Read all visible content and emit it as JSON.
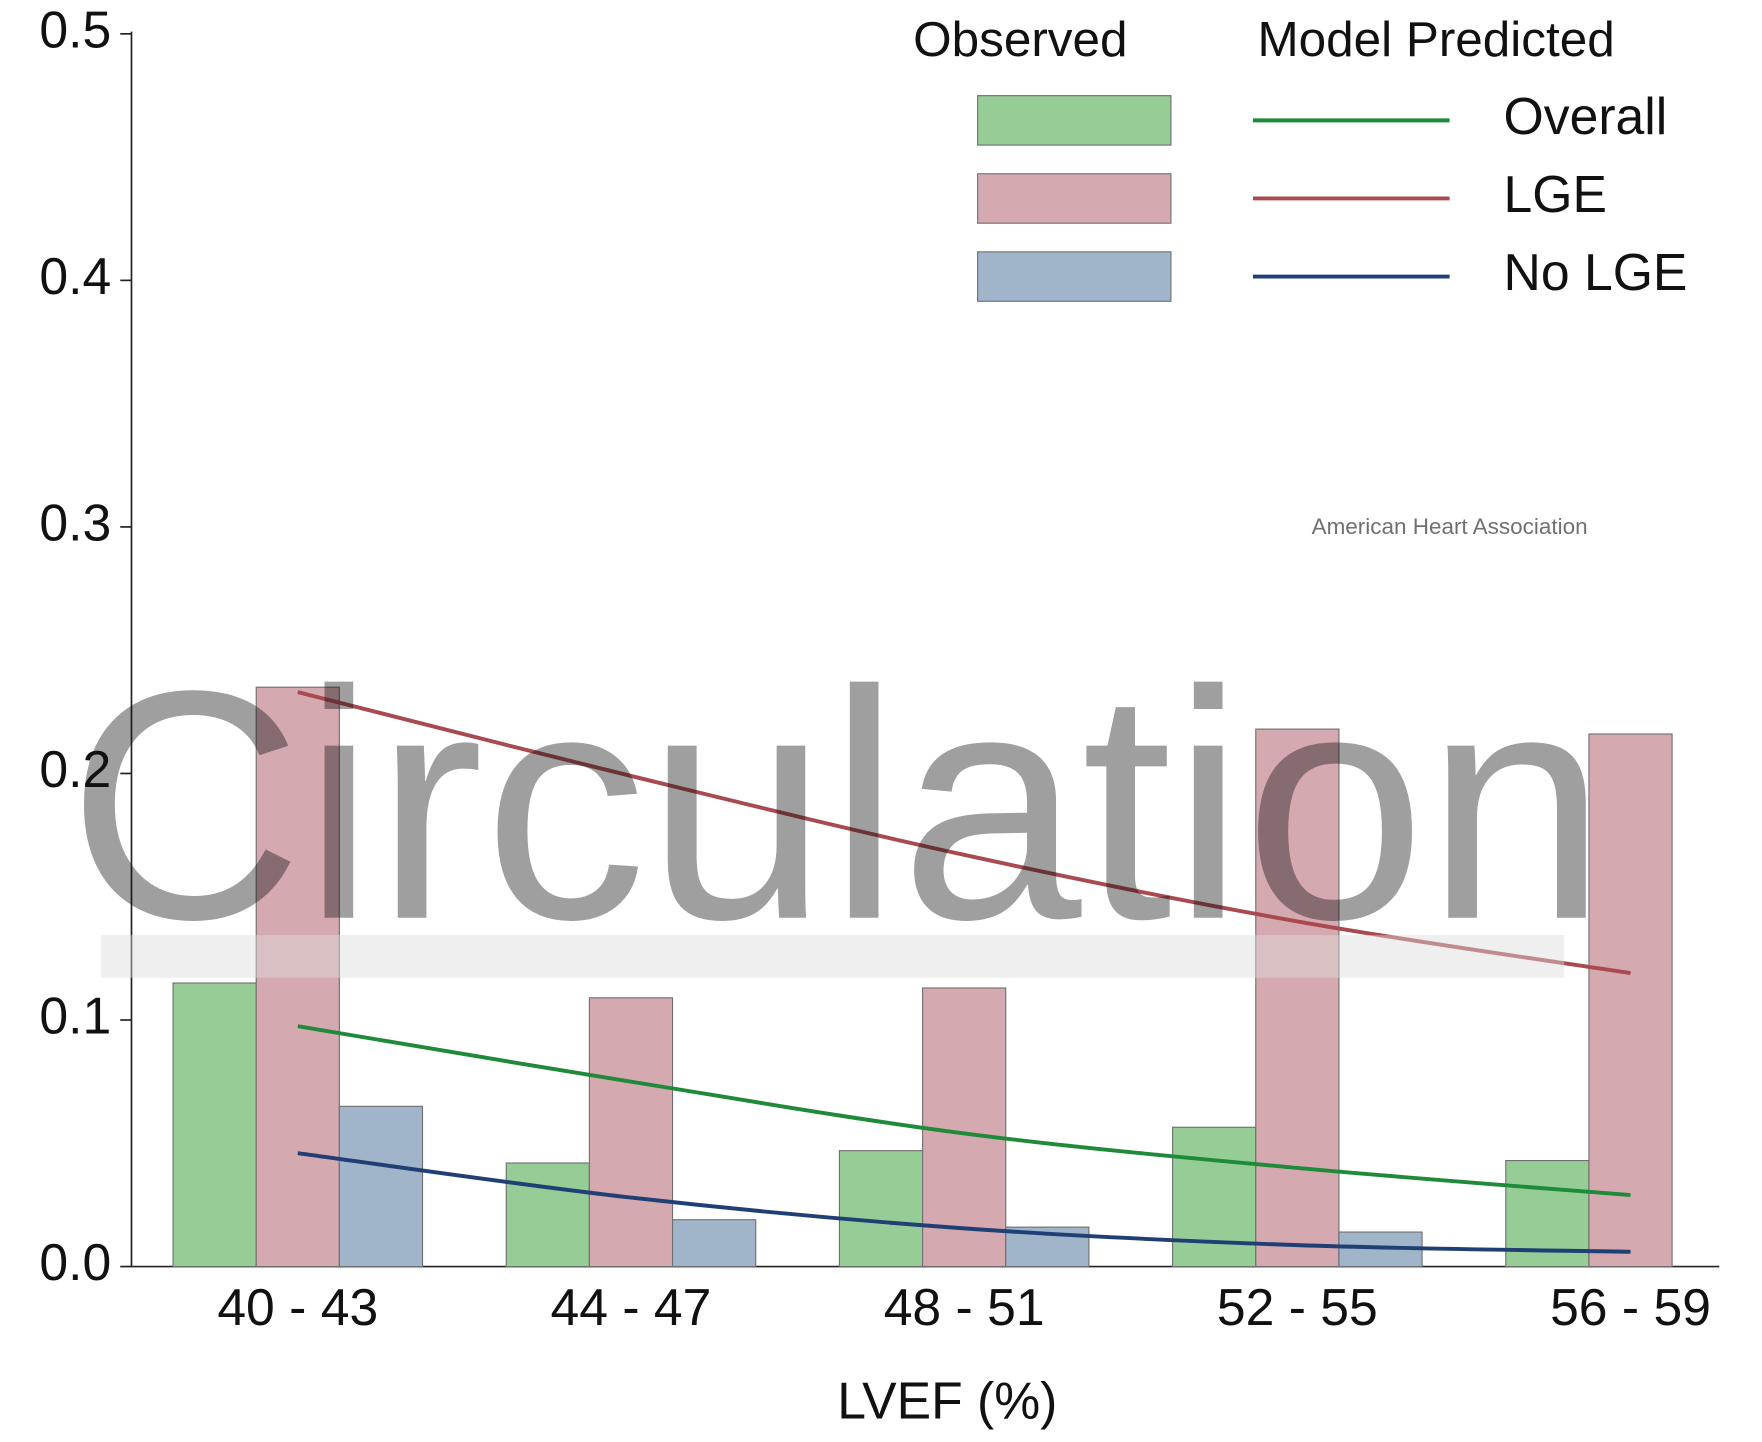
{
  "chart_data": {
    "type": "bar",
    "x_label": "LVEF (%)",
    "categories": [
      "40 - 43",
      "44 - 47",
      "48 - 51",
      "52 - 55",
      "56 - 59"
    ],
    "legend_titles": [
      "Observed",
      "Model Predicted"
    ],
    "series": [
      {
        "name": "Overall",
        "color": "#96cd96",
        "line_color": "#1f8a3a",
        "values": [
          0.115,
          0.042,
          0.047,
          0.0565,
          0.043
        ],
        "predicted": [
          0.0975,
          0.075,
          0.054,
          0.04,
          0.029
        ]
      },
      {
        "name": "LGE",
        "color": "#d5a9b0",
        "line_color": "#a84a50",
        "values": [
          0.235,
          0.109,
          0.113,
          0.218,
          0.216
        ],
        "predicted": [
          0.233,
          0.199,
          0.167,
          0.14,
          0.119
        ]
      },
      {
        "name": "No LGE",
        "color": "#a0b4ca",
        "line_color": "#1f3f75",
        "values": [
          0.065,
          0.019,
          0.016,
          0.014,
          null
        ],
        "predicted": [
          0.046,
          0.028,
          0.0155,
          0.0087,
          0.006
        ]
      }
    ],
    "ylim": [
      0,
      0.5
    ],
    "yticks": [
      {
        "value": 0,
        "label": "0.0"
      },
      0.1,
      0.2,
      0.3,
      0.4,
      0.5
    ],
    "watermark": "Circulation",
    "watermark_logo": "American Heart Association"
  }
}
